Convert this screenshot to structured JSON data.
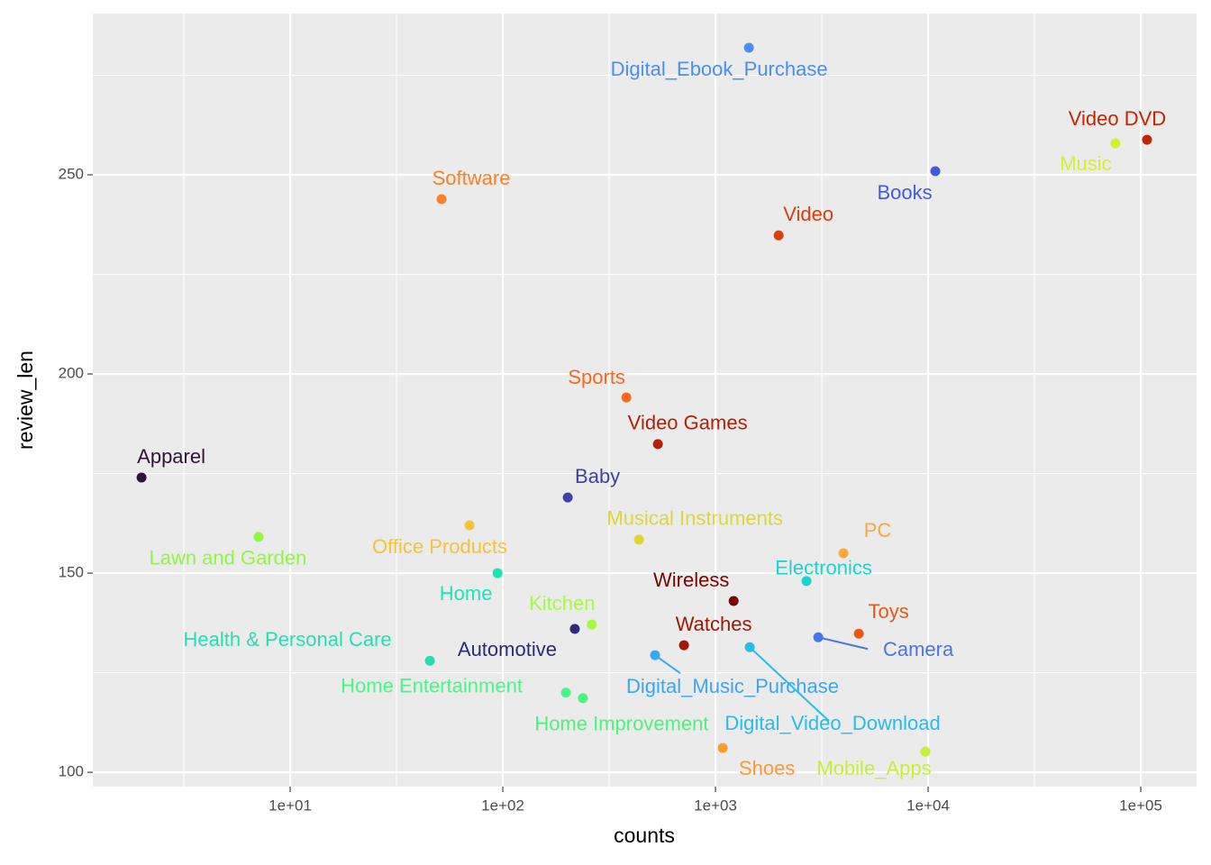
{
  "chart_data": {
    "type": "scatter",
    "x_label": "counts",
    "y_label": "review_len",
    "x_scale": "log",
    "xlim": [
      1.18,
      183000
    ],
    "ylim": [
      96.4,
      290.5
    ],
    "grid": true,
    "xticks": [
      {
        "value": 10,
        "label": "1e+01"
      },
      {
        "value": 100,
        "label": "1e+02"
      },
      {
        "value": 1000,
        "label": "1e+03"
      },
      {
        "value": 10000,
        "label": "1e+04"
      },
      {
        "value": 100000,
        "label": "1e+05"
      }
    ],
    "yticks": [
      100,
      150,
      200,
      250
    ],
    "points": [
      {
        "label": "Apparel",
        "x": 2.0,
        "y": 174,
        "color": "#30123b"
      },
      {
        "label": "Lawn and Garden",
        "x": 7.1,
        "y": 159.1,
        "color": "#8ef741"
      },
      {
        "label": "Software",
        "x": 51.5,
        "y": 243.9,
        "color": "#fb8022"
      },
      {
        "label": "Office Products",
        "x": 69.7,
        "y": 162,
        "color": "#f5c23a"
      },
      {
        "label": "Home",
        "x": 94.4,
        "y": 150,
        "color": "#1be5b5"
      },
      {
        "label": "Health & Personal Care",
        "x": 45.4,
        "y": 128,
        "color": "#26dfb0"
      },
      {
        "label": "Automotive",
        "x": 218,
        "y": 136,
        "color": "#2e2a78"
      },
      {
        "label": "Kitchen",
        "x": 262,
        "y": 137.1,
        "color": "#a2fc3c"
      },
      {
        "label": "Home Entertainment",
        "x": 198,
        "y": 120,
        "color": "#46f884"
      },
      {
        "label": "Home Improvement",
        "x": 238,
        "y": 118.6,
        "color": "#4cf27a"
      },
      {
        "label": "Baby",
        "x": 202,
        "y": 169,
        "color": "#4040a8"
      },
      {
        "label": "Sports",
        "x": 381,
        "y": 194.1,
        "color": "#f26a1b"
      },
      {
        "label": "Video Games",
        "x": 536,
        "y": 182.4,
        "color": "#b51f06"
      },
      {
        "label": "Musical Instruments",
        "x": 437,
        "y": 158.4,
        "color": "#dfd535"
      },
      {
        "label": "Digital_Music_Purchase",
        "x": 520,
        "y": 129.4,
        "color": "#39a7f5"
      },
      {
        "label": "Watches",
        "x": 711,
        "y": 131.9,
        "color": "#a01906"
      },
      {
        "label": "Wireless",
        "x": 1217,
        "y": 143,
        "color": "#7a0403"
      },
      {
        "label": "Shoes",
        "x": 1082,
        "y": 106.1,
        "color": "#fd9a30"
      },
      {
        "label": "Digital_Ebook_Purchase",
        "x": 1436,
        "y": 281.9,
        "color": "#4690f6"
      },
      {
        "label": "Digital_Video_Download",
        "x": 1449,
        "y": 131.4,
        "color": "#28bceb"
      },
      {
        "label": "Video",
        "x": 1982,
        "y": 234.8,
        "color": "#dc3e0a"
      },
      {
        "label": "Electronics",
        "x": 2680,
        "y": 148,
        "color": "#1dd3d0"
      },
      {
        "label": "Camera",
        "x": 3043,
        "y": 133.9,
        "color": "#4b75e6"
      },
      {
        "label": "PC",
        "x": 3997,
        "y": 155,
        "color": "#fba73a"
      },
      {
        "label": "Toys",
        "x": 4721,
        "y": 134.8,
        "color": "#ec5714"
      },
      {
        "label": "Mobile_Apps",
        "x": 9704,
        "y": 105.2,
        "color": "#c7ef34"
      },
      {
        "label": "Books",
        "x": 10810,
        "y": 250.9,
        "color": "#465ad9"
      },
      {
        "label": "Music",
        "x": 76000,
        "y": 257.9,
        "color": "#d4ee34"
      },
      {
        "label": "Video DVD",
        "x": 107000,
        "y": 258.8,
        "color": "#c42503"
      }
    ]
  }
}
